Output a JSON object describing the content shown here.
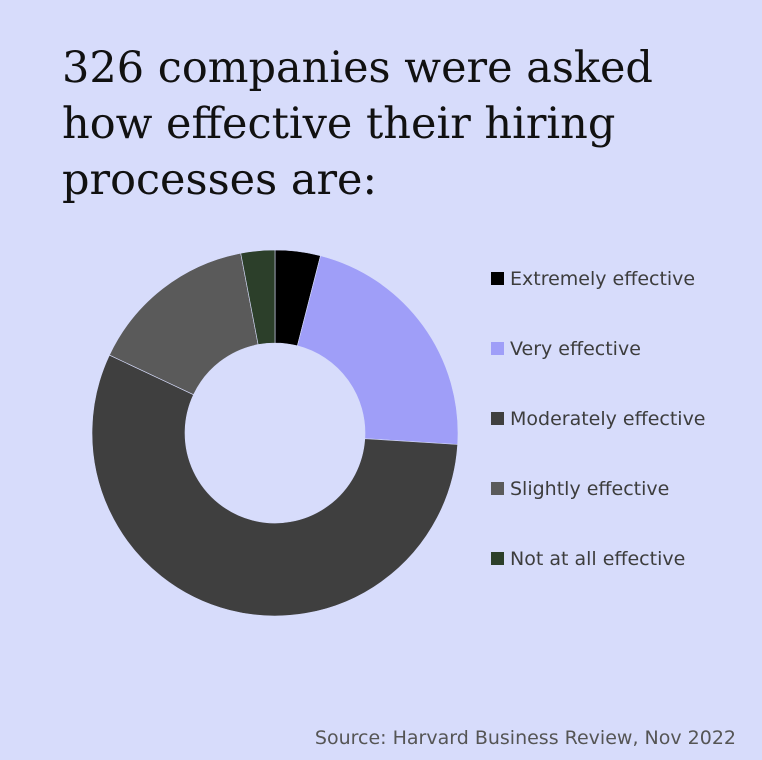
{
  "title": "326 companies were asked how effective their hiring processes are:",
  "source": "Source: Harvard Business Review, Nov 2022",
  "chart_data": {
    "type": "pie",
    "subtype": "donut",
    "legend_position": "right",
    "categories": [
      "Extremely effective",
      "Very effective",
      "Moderately effective",
      "Slightly effective",
      "Not at all effective"
    ],
    "values": [
      4,
      22,
      56,
      15,
      3
    ],
    "colors": [
      "#000000",
      "#9f9ef8",
      "#3f3f3f",
      "#5a5a5a",
      "#2c3f2a"
    ]
  }
}
